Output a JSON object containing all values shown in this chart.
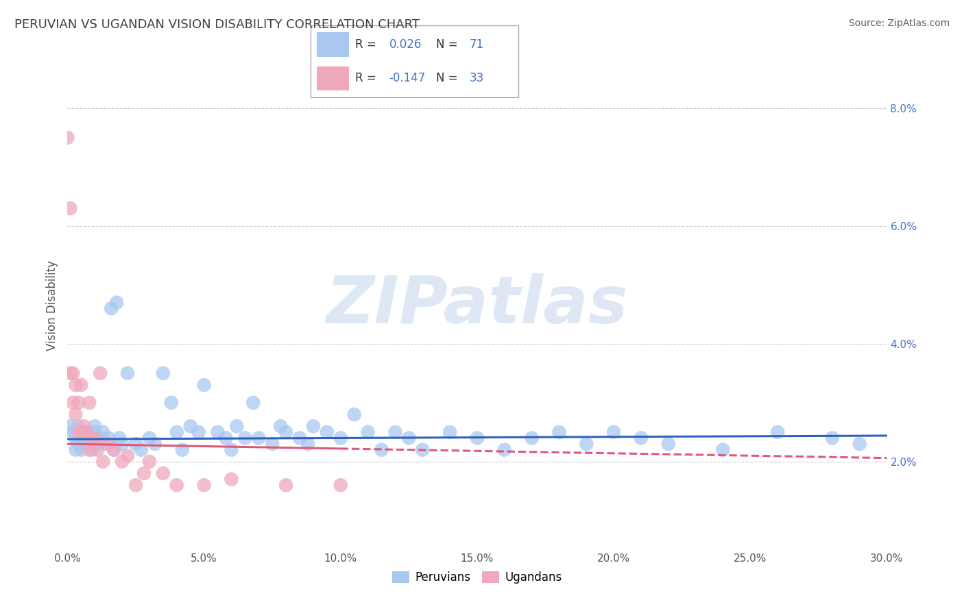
{
  "title": "PERUVIAN VS UGANDAN VISION DISABILITY CORRELATION CHART",
  "source": "Source: ZipAtlas.com",
  "ylabel": "Vision Disability",
  "xlim": [
    0.0,
    0.3
  ],
  "ylim": [
    0.005,
    0.088
  ],
  "xticks": [
    0.0,
    0.05,
    0.1,
    0.15,
    0.2,
    0.25,
    0.3
  ],
  "xtick_labels": [
    "0.0%",
    "5.0%",
    "10.0%",
    "15.0%",
    "20.0%",
    "25.0%",
    "30.0%"
  ],
  "yticks": [
    0.02,
    0.04,
    0.06,
    0.08
  ],
  "ytick_labels": [
    "2.0%",
    "4.0%",
    "6.0%",
    "8.0%"
  ],
  "blue_color": "#A8C8F0",
  "pink_color": "#F0A8BC",
  "blue_line_color": "#3060C0",
  "pink_line_color": "#E05878",
  "legend_r_blue": "0.026",
  "legend_n_blue": "71",
  "legend_r_pink": "-0.147",
  "legend_n_pink": "33",
  "legend_label_blue": "Peruvians",
  "legend_label_pink": "Ugandans",
  "title_color": "#404040",
  "source_color": "#606060",
  "watermark": "ZIPatlas",
  "blue_intercept": 0.0238,
  "blue_slope": 0.002,
  "pink_intercept": 0.023,
  "pink_slope": -0.008,
  "peruvian_x": [
    0.001,
    0.002,
    0.003,
    0.003,
    0.004,
    0.004,
    0.005,
    0.005,
    0.006,
    0.007,
    0.007,
    0.008,
    0.009,
    0.01,
    0.01,
    0.011,
    0.012,
    0.013,
    0.014,
    0.015,
    0.016,
    0.017,
    0.018,
    0.019,
    0.02,
    0.022,
    0.025,
    0.027,
    0.03,
    0.032,
    0.035,
    0.038,
    0.04,
    0.042,
    0.045,
    0.048,
    0.05,
    0.055,
    0.058,
    0.06,
    0.062,
    0.065,
    0.068,
    0.07,
    0.075,
    0.078,
    0.08,
    0.085,
    0.088,
    0.09,
    0.095,
    0.1,
    0.105,
    0.11,
    0.115,
    0.12,
    0.125,
    0.13,
    0.14,
    0.15,
    0.16,
    0.17,
    0.18,
    0.19,
    0.2,
    0.21,
    0.22,
    0.24,
    0.26,
    0.28,
    0.29
  ],
  "peruvian_y": [
    0.026,
    0.025,
    0.024,
    0.022,
    0.023,
    0.026,
    0.022,
    0.025,
    0.024,
    0.023,
    0.025,
    0.024,
    0.022,
    0.025,
    0.026,
    0.023,
    0.024,
    0.025,
    0.023,
    0.024,
    0.046,
    0.022,
    0.047,
    0.024,
    0.023,
    0.035,
    0.023,
    0.022,
    0.024,
    0.023,
    0.035,
    0.03,
    0.025,
    0.022,
    0.026,
    0.025,
    0.033,
    0.025,
    0.024,
    0.022,
    0.026,
    0.024,
    0.03,
    0.024,
    0.023,
    0.026,
    0.025,
    0.024,
    0.023,
    0.026,
    0.025,
    0.024,
    0.028,
    0.025,
    0.022,
    0.025,
    0.024,
    0.022,
    0.025,
    0.024,
    0.022,
    0.024,
    0.025,
    0.023,
    0.025,
    0.024,
    0.023,
    0.022,
    0.025,
    0.024,
    0.023
  ],
  "ugandan_x": [
    0.0,
    0.001,
    0.001,
    0.002,
    0.002,
    0.003,
    0.003,
    0.004,
    0.004,
    0.005,
    0.005,
    0.006,
    0.007,
    0.008,
    0.008,
    0.009,
    0.01,
    0.011,
    0.012,
    0.013,
    0.015,
    0.017,
    0.02,
    0.022,
    0.025,
    0.028,
    0.03,
    0.035,
    0.04,
    0.05,
    0.06,
    0.08,
    0.1
  ],
  "ugandan_y": [
    0.075,
    0.063,
    0.035,
    0.035,
    0.03,
    0.033,
    0.028,
    0.03,
    0.025,
    0.033,
    0.025,
    0.026,
    0.025,
    0.022,
    0.03,
    0.024,
    0.024,
    0.022,
    0.035,
    0.02,
    0.023,
    0.022,
    0.02,
    0.021,
    0.016,
    0.018,
    0.02,
    0.018,
    0.016,
    0.016,
    0.017,
    0.016,
    0.016
  ]
}
